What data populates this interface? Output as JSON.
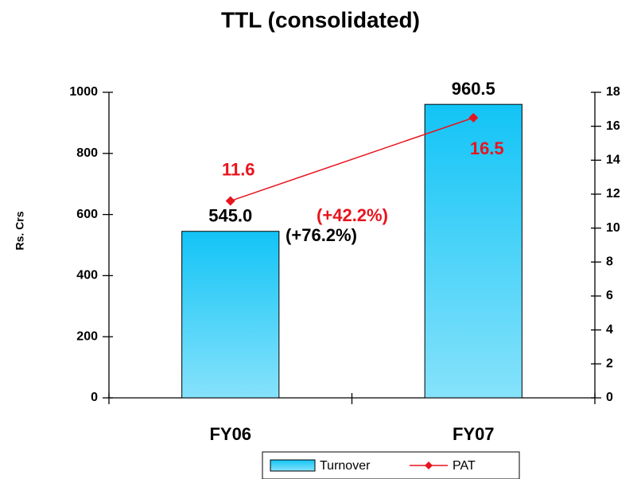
{
  "chart_data": {
    "type": "bar",
    "title": "TTL (consolidated)",
    "y_label": "Rs. Crs",
    "categories": [
      "FY06",
      "FY07"
    ],
    "series": [
      {
        "name": "Turnover",
        "type": "bar",
        "color": "#1ec8f5",
        "values": [
          545,
          960.5
        ],
        "value_labels": [
          "545.0",
          "960.5"
        ]
      },
      {
        "name": "PAT",
        "type": "line",
        "axis": "y2",
        "color": "#e8141e",
        "values": [
          11.6,
          16.5
        ]
      }
    ],
    "annotations": [
      {
        "text": "(+76.2%)",
        "color": "#000000"
      },
      {
        "text": "(+42.2%)",
        "color": "#e8141e"
      }
    ],
    "ylim": [
      0,
      1000
    ],
    "yticks": [
      0,
      200,
      400,
      600,
      800,
      1000
    ],
    "y2lim": [
      0,
      18
    ],
    "y2ticks": [
      0,
      2,
      4,
      6,
      8,
      10,
      12,
      14,
      16,
      18
    ],
    "grid": false,
    "legend": "bottom"
  }
}
